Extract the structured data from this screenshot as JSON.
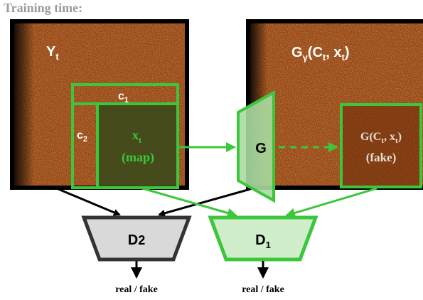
{
  "header": {
    "title": "Training time:"
  },
  "left_panel": {
    "label_main": "Y",
    "label_sub": "t",
    "c1_main": "c",
    "c1_sub": "1",
    "c2_main": "c",
    "c2_sub": "2",
    "map_line1_main": "x",
    "map_line1_sub": "t",
    "map_line2": "(map)"
  },
  "right_panel": {
    "label_prefix": "G",
    "label_gamma": "γ",
    "label_paren_open": "(C",
    "label_c_sub": "t",
    "label_mid": ", x",
    "label_x_sub": "t",
    "label_close": ")",
    "fake_line1": "G(C",
    "fake_line1_sub": "t",
    "fake_line1_end": ", x",
    "fake_line1_sub2": "t",
    "fake_line1_close": ")",
    "fake_line2": "(fake)"
  },
  "generator": {
    "label": "G"
  },
  "discriminators": {
    "d2": {
      "label_main": "D",
      "label_sub": "2",
      "output": "real / fake"
    },
    "d1": {
      "label_main": "D",
      "label_sub": "1",
      "output": "real / fake"
    }
  },
  "colors": {
    "green": "#3cc63c",
    "texture": "#8a3a10",
    "panel_border": "#000000",
    "d2_fill": "#d9d9d9",
    "d1_fill": "#cfeec9",
    "title_gray": "#9a9a9a"
  }
}
